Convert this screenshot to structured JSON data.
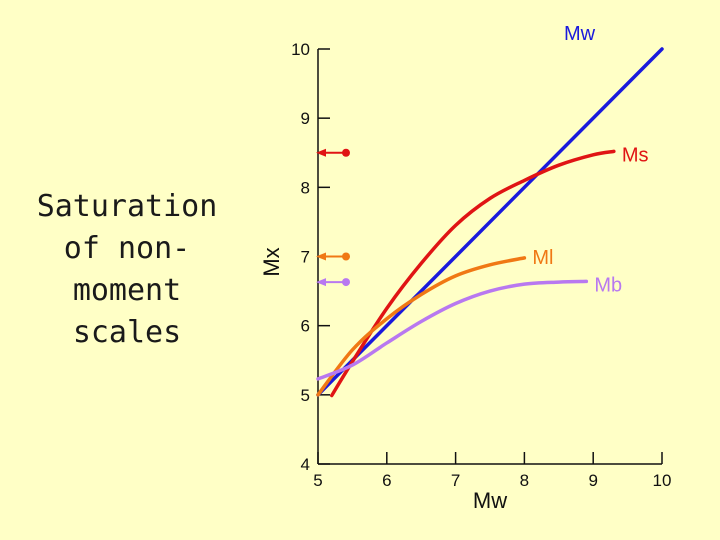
{
  "slide": {
    "title": "Saturation\nof non-\nmoment\nscales"
  },
  "chart_data": {
    "type": "line",
    "title": "",
    "xlabel": "Mw",
    "ylabel": "Mx",
    "xlim": [
      5,
      10
    ],
    "ylim": [
      4,
      10
    ],
    "x_ticks": [
      5,
      6,
      7,
      8,
      9,
      10
    ],
    "y_ticks": [
      4,
      5,
      6,
      7,
      8,
      9,
      10
    ],
    "grid": false,
    "series": [
      {
        "name": "Mw",
        "color": "#1a1adc",
        "x": [
          5.0,
          10.0
        ],
        "y": [
          5.0,
          10.0
        ]
      },
      {
        "name": "Ms",
        "color": "#e01414",
        "x": [
          5.2,
          5.5,
          6.0,
          6.5,
          7.0,
          7.5,
          8.0,
          8.5,
          9.0,
          9.3
        ],
        "y": [
          4.99,
          5.48,
          6.25,
          6.9,
          7.45,
          7.84,
          8.1,
          8.32,
          8.47,
          8.52
        ]
      },
      {
        "name": "Ml",
        "color": "#f07814",
        "x": [
          5.0,
          5.5,
          6.0,
          6.5,
          7.0,
          7.5,
          8.0
        ],
        "y": [
          5.0,
          5.65,
          6.1,
          6.45,
          6.72,
          6.88,
          6.98
        ]
      },
      {
        "name": "Mb",
        "color": "#b878f0",
        "x": [
          5.0,
          5.5,
          6.0,
          6.5,
          7.0,
          7.5,
          8.0,
          8.5,
          8.9
        ],
        "y": [
          5.23,
          5.43,
          5.75,
          6.06,
          6.32,
          6.5,
          6.6,
          6.63,
          6.64
        ]
      }
    ],
    "saturation_markers": [
      {
        "name": "Ms",
        "value": 8.5
      },
      {
        "name": "Ml",
        "value": 7.0
      },
      {
        "name": "Mb",
        "value": 6.63
      }
    ]
  }
}
